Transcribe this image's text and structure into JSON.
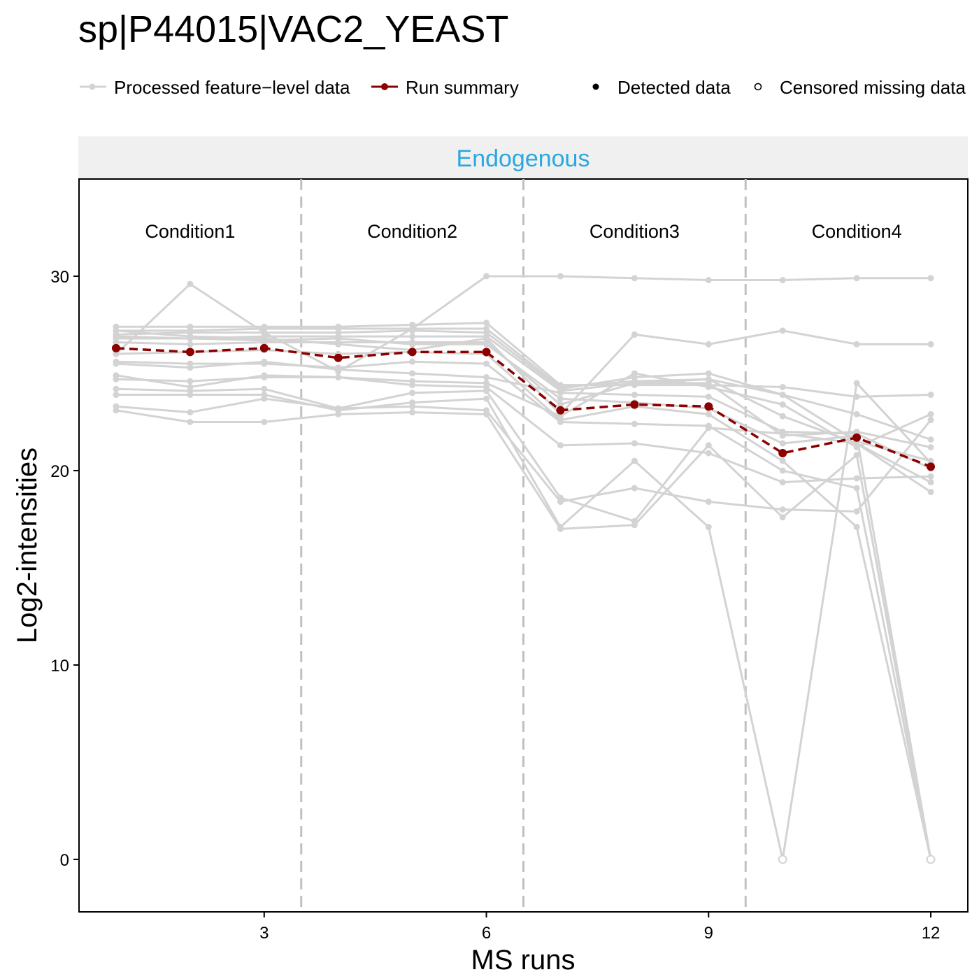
{
  "chart_data": {
    "type": "line",
    "title": "sp|P44015|VAC2_YEAST",
    "panel_label": "Endogenous",
    "xlabel": "MS runs",
    "ylabel": "Log2-intensities",
    "xlim": [
      0.5,
      12.5
    ],
    "ylim": [
      -2.7,
      35.0
    ],
    "x_ticks": [
      3,
      6,
      9,
      12
    ],
    "y_ticks": [
      0,
      10,
      20,
      30
    ],
    "condition_dividers": [
      3.5,
      6.5,
      9.5
    ],
    "conditions": [
      {
        "label": "Condition1",
        "x": 2
      },
      {
        "label": "Condition2",
        "x": 5
      },
      {
        "label": "Condition3",
        "x": 8
      },
      {
        "label": "Condition4",
        "x": 11
      }
    ],
    "legend": {
      "processed": "Processed feature−level data",
      "summary": "Run summary",
      "detected": "Detected data",
      "censored": "Censored missing data"
    },
    "colors": {
      "feature": "#d3d3d3",
      "summary": "#8b0000",
      "panel_strip_text": "#29a8e0",
      "panel_strip_bg": "#f0f0f0",
      "divider": "#c0c0c0"
    },
    "summary_series": {
      "name": "Run summary",
      "x": [
        1,
        2,
        3,
        4,
        5,
        6,
        7,
        8,
        9,
        10,
        11,
        12
      ],
      "values": [
        26.3,
        26.1,
        26.3,
        25.8,
        26.1,
        26.1,
        23.1,
        23.4,
        23.3,
        20.9,
        21.7,
        20.2
      ]
    },
    "feature_series": [
      {
        "values": [
          27.4,
          27.4,
          27.4,
          27.4,
          27.5,
          27.6,
          24.4,
          24.4,
          24.4,
          24.3,
          23.8,
          23.9
        ]
      },
      {
        "values": [
          27.2,
          27.2,
          27.3,
          27.3,
          27.3,
          27.3,
          24.3,
          24.6,
          24.7,
          23.9,
          22.9,
          21.6
        ]
      },
      {
        "values": [
          27.0,
          27.1,
          27.1,
          27.1,
          27.2,
          27.1,
          24.2,
          24.8,
          25.0,
          23.9,
          21.5,
          20.5
        ]
      },
      {
        "values": [
          26.9,
          26.8,
          26.9,
          26.9,
          26.9,
          26.9,
          24.1,
          24.5,
          24.7,
          22.8,
          21.4,
          19.4
        ]
      },
      {
        "values": [
          26.6,
          26.5,
          26.6,
          26.6,
          26.6,
          26.6,
          23.4,
          24.5,
          24.5,
          21.8,
          22.0,
          21.2
        ]
      },
      {
        "values": [
          26.0,
          29.6,
          27.1,
          25.1,
          27.3,
          30.0,
          30.0,
          29.9,
          29.8,
          29.8,
          29.9,
          29.9
        ]
      },
      {
        "values": [
          27.2,
          26.9,
          26.8,
          26.5,
          26.2,
          26.8,
          22.9,
          27.0,
          26.5,
          27.2,
          26.5,
          26.5
        ]
      },
      {
        "values": [
          25.5,
          25.3,
          25.6,
          25.2,
          25.0,
          24.8,
          24.0,
          23.9,
          23.8,
          22.0,
          21.9,
          20.1
        ]
      },
      {
        "values": [
          24.9,
          24.3,
          24.9,
          24.8,
          24.6,
          24.5,
          22.8,
          25.0,
          24.3,
          23.4,
          21.2,
          22.9
        ]
      },
      {
        "values": [
          24.7,
          24.6,
          24.8,
          24.8,
          24.4,
          24.3,
          21.3,
          21.4,
          20.9,
          19.4,
          19.6,
          19.7
        ]
      },
      {
        "values": [
          24.2,
          24.1,
          24.2,
          23.2,
          24.0,
          24.1,
          18.6,
          17.4,
          22.2,
          21.9,
          21.4,
          18.9
        ]
      },
      {
        "values": [
          23.9,
          23.9,
          23.9,
          23.1,
          23.5,
          23.7,
          17.1,
          20.5,
          17.1,
          0.0,
          24.5,
          20.4
        ]
      },
      {
        "values": [
          23.3,
          23.0,
          23.7,
          23.2,
          23.3,
          23.1,
          18.4,
          19.1,
          18.4,
          18.0,
          17.9,
          22.6
        ]
      },
      {
        "values": [
          23.1,
          22.5,
          22.5,
          22.9,
          23.0,
          22.9,
          17.0,
          17.2,
          21.3,
          17.6,
          20.8,
          0.0
        ]
      },
      {
        "values": [
          25.6,
          25.5,
          25.5,
          25.3,
          25.6,
          25.5,
          22.5,
          22.4,
          22.3,
          20.0,
          19.1,
          0.0
        ]
      },
      {
        "values": [
          26.0,
          26.1,
          26.2,
          26.0,
          26.1,
          26.0,
          22.6,
          23.3,
          22.9,
          20.5,
          17.1,
          0.0
        ]
      },
      {
        "values": [
          26.8,
          26.8,
          26.7,
          26.8,
          26.5,
          26.5,
          23.7,
          23.5,
          23.2,
          21.4,
          21.8,
          0.0
        ]
      }
    ],
    "censored_points": [
      {
        "x": 10,
        "y": 0.0
      },
      {
        "x": 12,
        "y": 0.0
      }
    ]
  }
}
